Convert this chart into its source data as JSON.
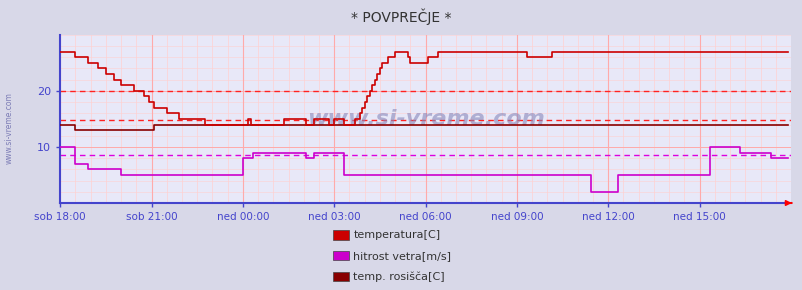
{
  "title": "* POVPREČJE *",
  "bg_color": "#d8d8e8",
  "plot_bg_color": "#e8e8f8",
  "grid_color_major": "#ffaaaa",
  "grid_color_minor": "#ffd0d0",
  "axis_color": "#4444cc",
  "watermark_text": "www.si-vreme.com",
  "xticklabels": [
    "sob 18:00",
    "sob 21:00",
    "ned 00:00",
    "ned 03:00",
    "ned 06:00",
    "ned 09:00",
    "ned 12:00",
    "ned 15:00"
  ],
  "yticks": [
    10,
    20
  ],
  "ylim": [
    0,
    30
  ],
  "hline_20": {
    "y": 20.0,
    "color": "#ff2222",
    "lw": 1.0
  },
  "hline_temp_mean": {
    "y": 14.8,
    "color": "#ff2222",
    "lw": 1.0
  },
  "hline_wind_mean": {
    "y": 8.5,
    "color": "#dd00dd",
    "lw": 1.0
  },
  "temp_color": "#cc0000",
  "wind_color": "#cc00cc",
  "dew_color": "#880000",
  "n_points": 288,
  "x_tick_indices": [
    0,
    36,
    72,
    108,
    144,
    180,
    216,
    252
  ],
  "temp_data": [
    27,
    27,
    27,
    27,
    27,
    27,
    26,
    26,
    26,
    26,
    26,
    25,
    25,
    25,
    25,
    24,
    24,
    24,
    23,
    23,
    23,
    22,
    22,
    22,
    21,
    21,
    21,
    21,
    21,
    20,
    20,
    20,
    20,
    19,
    19,
    18,
    18,
    17,
    17,
    17,
    17,
    17,
    16,
    16,
    16,
    16,
    16,
    15,
    15,
    15,
    15,
    15,
    15,
    15,
    15,
    15,
    15,
    14,
    14,
    14,
    14,
    14,
    14,
    14,
    14,
    14,
    14,
    14,
    14,
    14,
    14,
    14,
    14,
    14,
    15,
    14,
    14,
    14,
    14,
    14,
    14,
    14,
    14,
    14,
    14,
    14,
    14,
    14,
    15,
    15,
    15,
    15,
    15,
    15,
    15,
    15,
    15,
    14,
    14,
    14,
    15,
    15,
    15,
    15,
    15,
    15,
    14,
    14,
    15,
    15,
    15,
    15,
    14,
    14,
    14,
    14,
    15,
    15,
    16,
    17,
    18,
    19,
    20,
    21,
    22,
    23,
    24,
    25,
    25,
    26,
    26,
    26,
    27,
    27,
    27,
    27,
    27,
    26,
    25,
    25,
    25,
    25,
    25,
    25,
    25,
    26,
    26,
    26,
    26,
    27,
    27,
    27,
    27,
    27,
    27,
    27,
    27,
    27,
    27,
    27,
    27,
    27,
    27,
    27,
    27,
    27,
    27,
    27,
    27,
    27,
    27,
    27,
    27,
    27,
    27,
    27,
    27,
    27,
    27,
    27,
    27,
    27,
    27,
    27,
    26,
    26,
    26,
    26,
    26,
    26,
    26,
    26,
    26,
    26,
    27,
    27,
    27,
    27,
    27,
    27,
    27,
    27,
    27,
    27,
    27,
    27,
    27,
    27,
    27,
    27,
    27,
    27,
    27,
    27,
    27,
    27,
    27,
    27,
    27,
    27,
    27,
    27,
    27,
    27,
    27,
    27,
    27,
    27,
    27,
    27,
    27,
    27,
    27,
    27,
    27,
    27,
    27,
    27,
    27,
    27,
    27,
    27,
    27,
    27,
    27,
    27,
    27,
    27,
    27,
    27,
    27,
    27,
    27,
    27,
    27,
    27,
    27,
    27,
    27,
    27,
    27,
    27,
    27,
    27,
    27,
    27,
    27,
    27,
    27,
    27,
    27,
    27,
    27,
    27,
    27,
    27,
    27,
    27,
    27,
    27,
    27,
    27,
    27,
    27,
    27,
    27,
    27,
    27
  ],
  "wind_data": [
    10,
    10,
    10,
    10,
    10,
    10,
    7,
    7,
    7,
    7,
    7,
    6,
    6,
    6,
    6,
    6,
    6,
    6,
    6,
    6,
    6,
    6,
    6,
    6,
    5,
    5,
    5,
    5,
    5,
    5,
    5,
    5,
    5,
    5,
    5,
    5,
    5,
    5,
    5,
    5,
    5,
    5,
    5,
    5,
    5,
    5,
    5,
    5,
    5,
    5,
    5,
    5,
    5,
    5,
    5,
    5,
    5,
    5,
    5,
    5,
    5,
    5,
    5,
    5,
    5,
    5,
    5,
    5,
    5,
    5,
    5,
    5,
    8,
    8,
    8,
    8,
    9,
    9,
    9,
    9,
    9,
    9,
    9,
    9,
    9,
    9,
    9,
    9,
    9,
    9,
    9,
    9,
    9,
    9,
    9,
    9,
    9,
    8,
    8,
    8,
    9,
    9,
    9,
    9,
    9,
    9,
    9,
    9,
    9,
    9,
    9,
    9,
    5,
    5,
    5,
    5,
    5,
    5,
    5,
    5,
    5,
    5,
    5,
    5,
    5,
    5,
    5,
    5,
    5,
    5,
    5,
    5,
    5,
    5,
    5,
    5,
    5,
    5,
    5,
    5,
    5,
    5,
    5,
    5,
    5,
    5,
    5,
    5,
    5,
    5,
    5,
    5,
    5,
    5,
    5,
    5,
    5,
    5,
    5,
    5,
    5,
    5,
    5,
    5,
    5,
    5,
    5,
    5,
    5,
    5,
    5,
    5,
    5,
    5,
    5,
    5,
    5,
    5,
    5,
    5,
    5,
    5,
    5,
    5,
    5,
    5,
    5,
    5,
    5,
    5,
    5,
    5,
    5,
    5,
    5,
    5,
    5,
    5,
    5,
    5,
    5,
    5,
    5,
    5,
    5,
    5,
    5,
    5,
    5,
    2,
    2,
    2,
    2,
    2,
    2,
    2,
    2,
    2,
    2,
    2,
    5,
    5,
    5,
    5,
    5,
    5,
    5,
    5,
    5,
    5,
    5,
    5,
    5,
    5,
    5,
    5,
    5,
    5,
    5,
    5,
    5,
    5,
    5,
    5,
    5,
    5,
    5,
    5,
    5,
    5,
    5,
    5,
    5,
    5,
    5,
    5,
    10,
    10,
    10,
    10,
    10,
    10,
    10,
    10,
    10,
    10,
    10,
    10,
    9,
    9,
    9,
    9,
    9,
    9,
    9,
    9,
    9,
    9,
    9,
    9,
    8,
    8,
    8,
    8,
    8,
    8,
    8,
    8
  ],
  "dew_data": [
    14,
    14,
    14,
    14,
    14,
    14,
    13,
    13,
    13,
    13,
    13,
    13,
    13,
    13,
    13,
    13,
    13,
    13,
    13,
    13,
    13,
    13,
    13,
    13,
    13,
    13,
    13,
    13,
    13,
    13,
    13,
    13,
    13,
    13,
    13,
    13,
    13,
    14,
    14,
    14,
    14,
    14,
    14,
    14,
    14,
    14,
    14,
    14,
    14,
    14,
    14,
    14,
    14,
    14,
    14,
    14,
    14,
    14,
    14,
    14,
    14,
    14,
    14,
    14,
    14,
    14,
    14,
    14,
    14,
    14,
    14,
    14,
    14,
    14,
    14,
    14,
    14,
    14,
    14,
    14,
    14,
    14,
    14,
    14,
    14,
    14,
    14,
    14,
    14,
    14,
    14,
    14,
    14,
    14,
    14,
    14,
    14,
    14,
    14,
    14,
    14,
    14,
    14,
    14,
    14,
    14,
    14,
    14,
    14,
    14,
    14,
    14,
    14,
    14,
    14,
    14,
    14,
    14,
    14,
    14,
    14,
    14,
    14,
    14,
    14,
    14,
    14,
    14,
    14,
    14,
    14,
    14,
    14,
    14,
    14,
    14,
    14,
    14,
    14,
    14,
    14,
    14,
    14,
    14,
    14,
    14,
    14,
    14,
    14,
    14,
    14,
    14,
    14,
    14,
    14,
    14,
    14,
    14,
    14,
    14,
    14,
    14,
    14,
    14,
    14,
    14,
    14,
    14,
    14,
    14,
    14,
    14,
    14,
    14,
    14,
    14,
    14,
    14,
    14,
    14,
    14,
    14,
    14,
    14,
    14,
    14,
    14,
    14,
    14,
    14,
    14,
    14,
    14,
    14,
    14,
    14,
    14,
    14,
    14,
    14,
    14,
    14,
    14,
    14,
    14,
    14,
    14,
    14,
    14,
    14,
    14,
    14,
    14,
    14,
    14,
    14,
    14,
    14,
    14,
    14,
    14,
    14,
    14,
    14,
    14,
    14,
    14,
    14,
    14,
    14,
    14,
    14,
    14,
    14,
    14,
    14,
    14,
    14,
    14,
    14,
    14,
    14,
    14,
    14,
    14,
    14,
    14,
    14,
    14,
    14,
    14,
    14,
    14,
    14,
    14,
    14,
    14,
    14,
    14,
    14,
    14,
    14,
    14,
    14,
    14,
    14,
    14,
    14,
    14,
    14,
    14,
    14,
    14,
    14,
    14,
    14,
    14,
    14,
    14,
    14,
    14,
    14,
    14,
    14,
    14,
    14,
    14,
    14
  ],
  "legend_labels": [
    "temperatura[C]",
    "hitrost vetra[m/s]",
    "temp. rosišča[C]"
  ],
  "legend_colors": [
    "#cc0000",
    "#cc00cc",
    "#880000"
  ]
}
